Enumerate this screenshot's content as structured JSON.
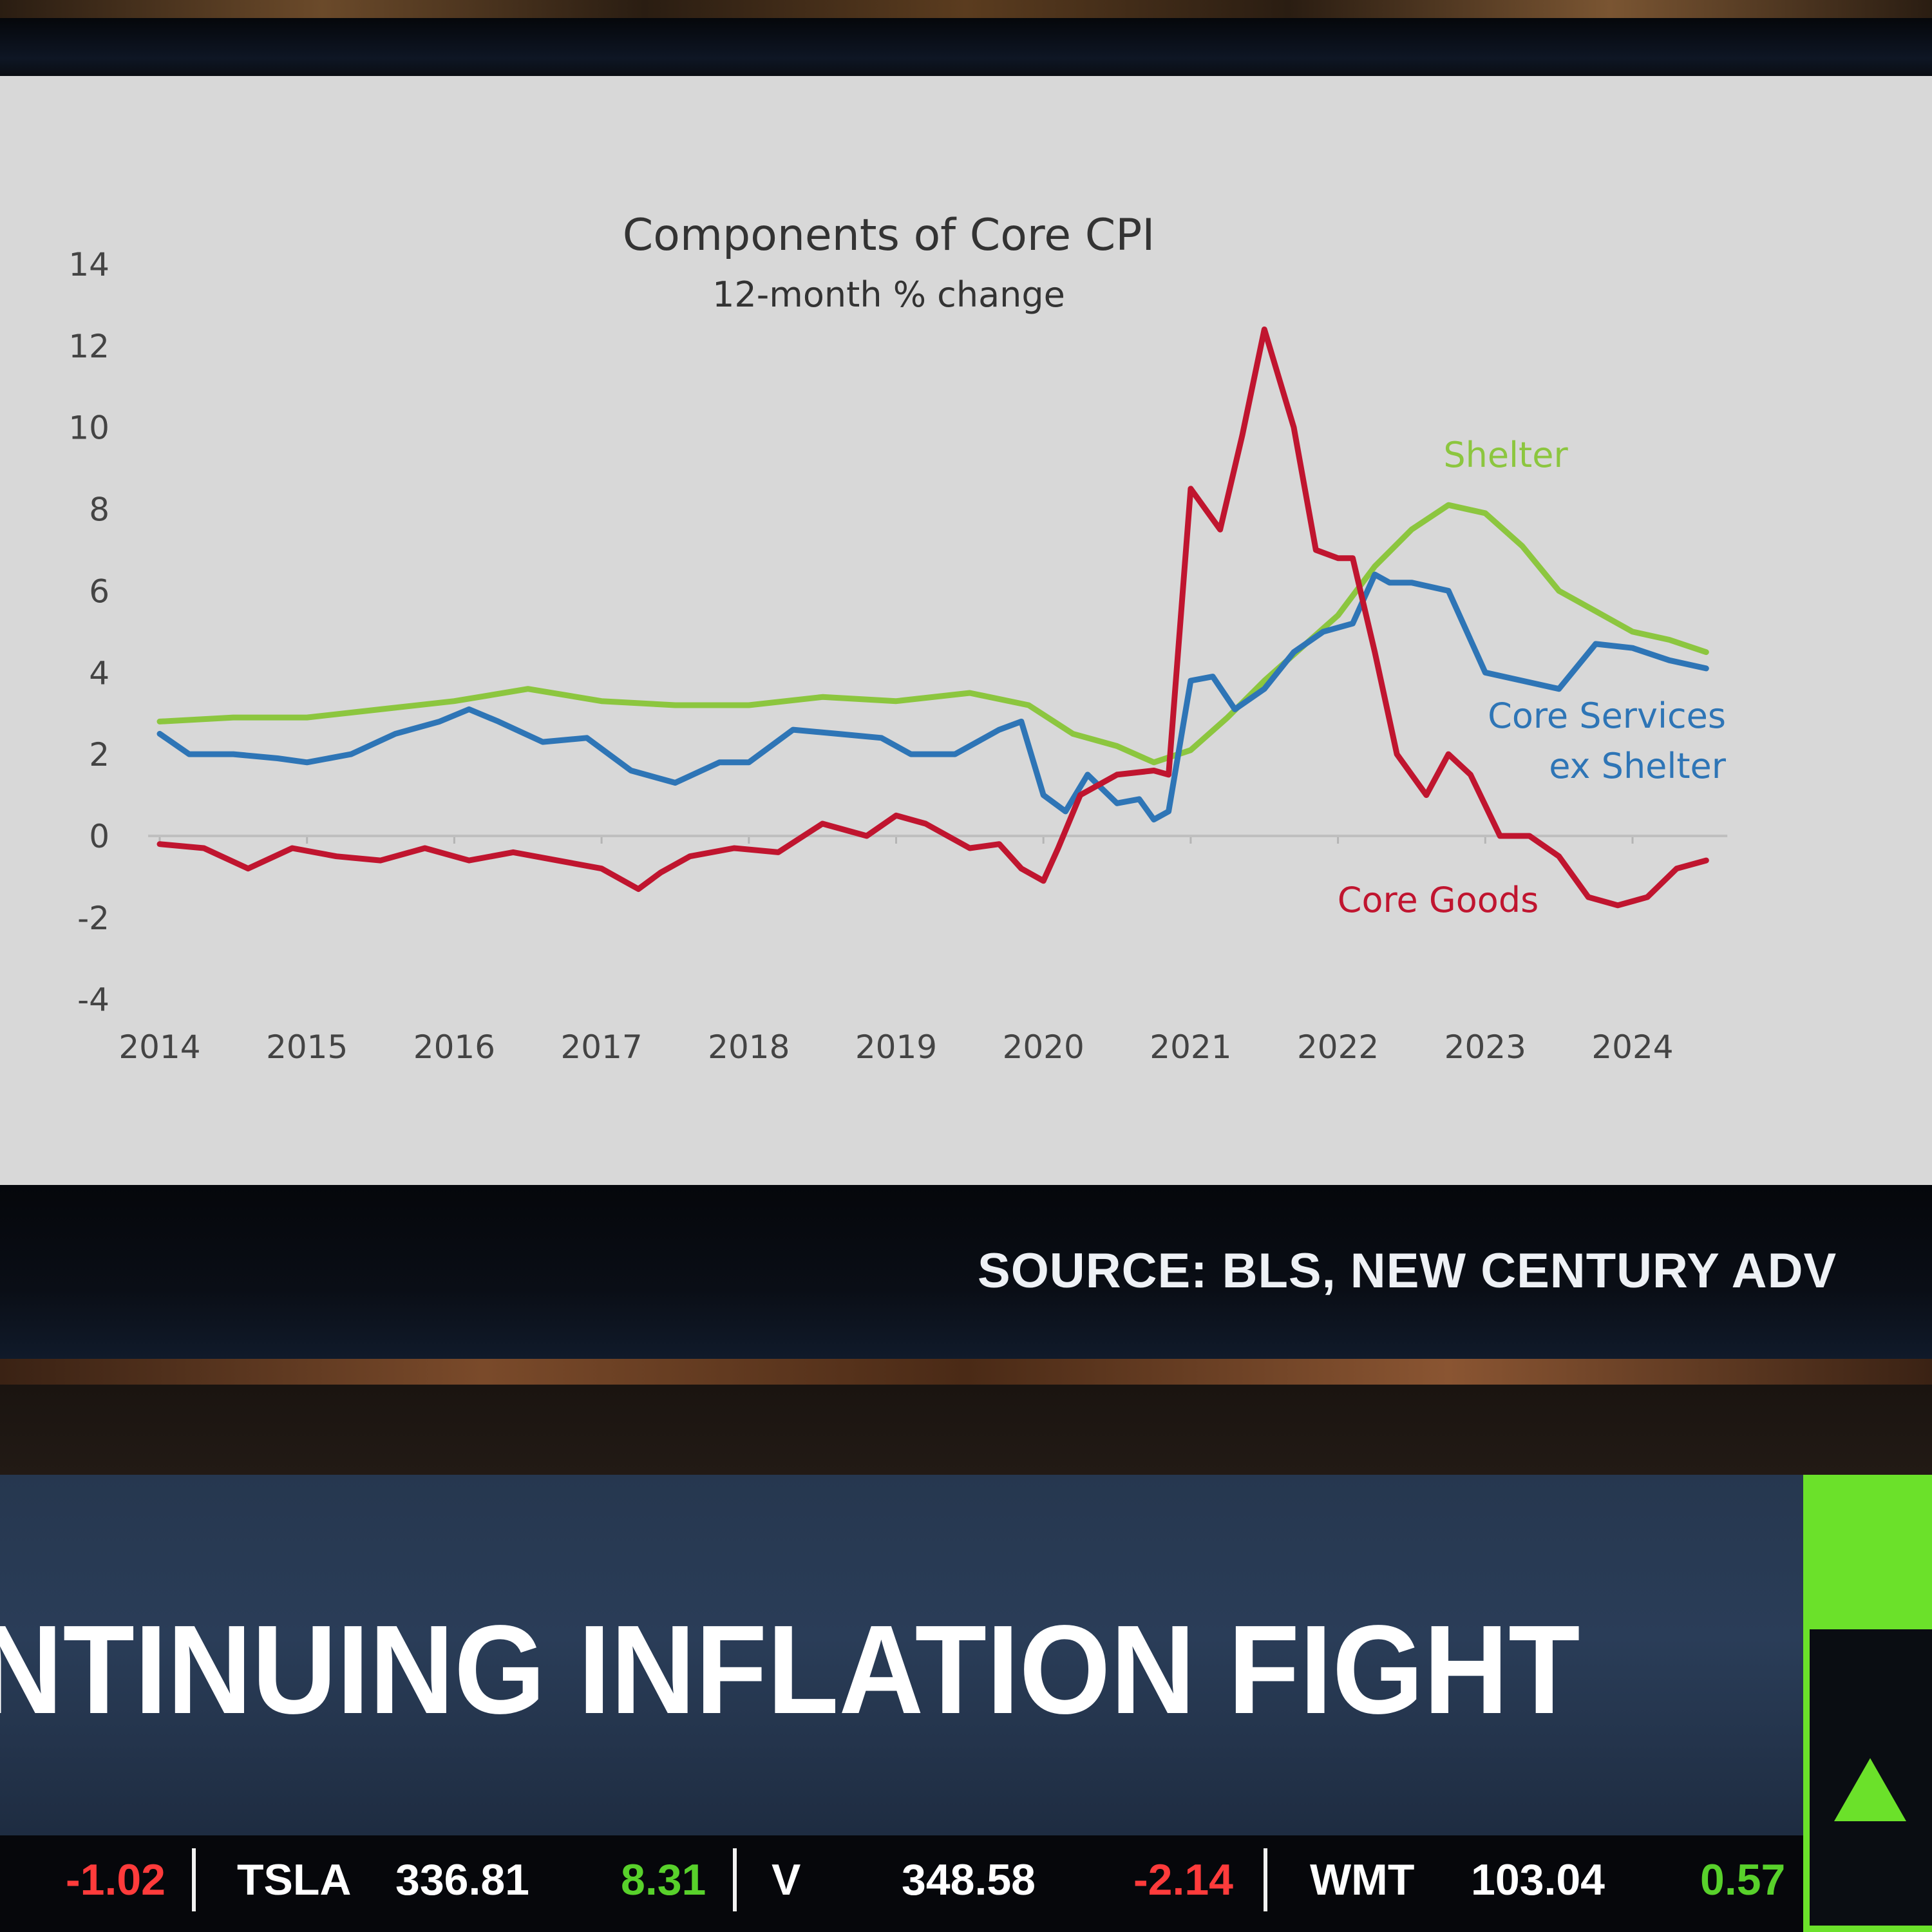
{
  "source_label": "SOURCE: BLS, NEW CENTURY ADV",
  "headline": "NTINUING INFLATION FIGHT",
  "ticker": [
    {
      "change": "-1.02",
      "dir": "down"
    },
    {
      "symbol": "TSLA",
      "price": "336.81",
      "change": "8.31",
      "dir": "up"
    },
    {
      "symbol": "V",
      "price": "348.58",
      "change": "-2.14",
      "dir": "down"
    },
    {
      "symbol": "WMT",
      "price": "103.04",
      "change": "0.57",
      "dir": "up"
    }
  ],
  "colors": {
    "up": "#58d12b",
    "down": "#ff3b3b",
    "shelter": "#8cc63f",
    "core_services": "#2e75b6",
    "core_goods": "#c0152f",
    "indicator": "#6be12a"
  },
  "indicator_icon": "up-triangle-icon",
  "chart_data": {
    "type": "line",
    "title": "Components of Core CPI",
    "subtitle": "12-month % change",
    "xlabel": "",
    "ylabel": "",
    "ylim": [
      -4,
      14
    ],
    "yticks": [
      "14",
      "12",
      "10",
      "8",
      "6",
      "4",
      "2",
      "0",
      "-2",
      "-4"
    ],
    "xlim": [
      2014,
      2024.6
    ],
    "xticks": [
      "2014",
      "2015",
      "2016",
      "2017",
      "2018",
      "2019",
      "2020",
      "2021",
      "2022",
      "2023",
      "2024"
    ],
    "grid": false,
    "legend": "inline labels",
    "series": [
      {
        "name": "Shelter",
        "label_lines": [
          "Shelter"
        ],
        "color": "#8cc63f",
        "x": [
          2014.0,
          2014.5,
          2015.0,
          2015.5,
          2016.0,
          2016.5,
          2017.0,
          2017.5,
          2018.0,
          2018.5,
          2019.0,
          2019.5,
          2019.9,
          2020.2,
          2020.5,
          2020.75,
          2021.0,
          2021.25,
          2021.5,
          2021.75,
          2022.0,
          2022.25,
          2022.5,
          2022.75,
          2023.0,
          2023.25,
          2023.5,
          2023.75,
          2024.0,
          2024.25,
          2024.5
        ],
        "y": [
          2.8,
          2.9,
          2.9,
          3.1,
          3.3,
          3.6,
          3.3,
          3.2,
          3.2,
          3.4,
          3.3,
          3.5,
          3.2,
          2.5,
          2.2,
          1.8,
          2.1,
          2.9,
          3.8,
          4.6,
          5.4,
          6.6,
          7.5,
          8.1,
          7.9,
          7.1,
          6.0,
          5.5,
          5.0,
          4.8,
          4.5
        ]
      },
      {
        "name": "Core Services ex Shelter",
        "label_lines": [
          "Core Services",
          "ex Shelter"
        ],
        "color": "#2e75b6",
        "x": [
          2014.0,
          2014.2,
          2014.5,
          2014.8,
          2015.0,
          2015.3,
          2015.6,
          2015.9,
          2016.1,
          2016.3,
          2016.6,
          2016.9,
          2017.2,
          2017.5,
          2017.8,
          2018.0,
          2018.3,
          2018.6,
          2018.9,
          2019.1,
          2019.4,
          2019.7,
          2019.85,
          2020.0,
          2020.15,
          2020.3,
          2020.5,
          2020.65,
          2020.75,
          2020.85,
          2021.0,
          2021.15,
          2021.3,
          2021.5,
          2021.7,
          2021.9,
          2022.1,
          2022.25,
          2022.35,
          2022.5,
          2022.75,
          2023.0,
          2023.25,
          2023.5,
          2023.75,
          2024.0,
          2024.25,
          2024.5
        ],
        "y": [
          2.5,
          2.0,
          2.0,
          1.9,
          1.8,
          2.0,
          2.5,
          2.8,
          3.1,
          2.8,
          2.3,
          2.4,
          1.6,
          1.3,
          1.8,
          1.8,
          2.6,
          2.5,
          2.4,
          2.0,
          2.0,
          2.6,
          2.8,
          1.0,
          0.6,
          1.5,
          0.8,
          0.9,
          0.4,
          0.6,
          3.8,
          3.9,
          3.1,
          3.6,
          4.5,
          5.0,
          5.2,
          6.4,
          6.2,
          6.2,
          6.0,
          4.0,
          3.8,
          3.6,
          4.7,
          4.6,
          4.3,
          4.1
        ]
      },
      {
        "name": "Core Goods",
        "label_lines": [
          "Core Goods"
        ],
        "color": "#c0152f",
        "x": [
          2014.0,
          2014.3,
          2014.6,
          2014.9,
          2015.2,
          2015.5,
          2015.8,
          2016.1,
          2016.4,
          2016.7,
          2017.0,
          2017.25,
          2017.4,
          2017.6,
          2017.9,
          2018.2,
          2018.5,
          2018.8,
          2019.0,
          2019.2,
          2019.5,
          2019.7,
          2019.85,
          2020.0,
          2020.1,
          2020.25,
          2020.5,
          2020.75,
          2020.85,
          2021.0,
          2021.2,
          2021.35,
          2021.5,
          2021.7,
          2021.85,
          2022.0,
          2022.1,
          2022.25,
          2022.4,
          2022.6,
          2022.75,
          2022.9,
          2023.1,
          2023.3,
          2023.5,
          2023.7,
          2023.9,
          2024.1,
          2024.3,
          2024.5
        ],
        "y": [
          -0.2,
          -0.3,
          -0.8,
          -0.3,
          -0.5,
          -0.6,
          -0.3,
          -0.6,
          -0.4,
          -0.6,
          -0.8,
          -1.3,
          -0.9,
          -0.5,
          -0.3,
          -0.4,
          0.3,
          0.0,
          0.5,
          0.3,
          -0.3,
          -0.2,
          -0.8,
          -1.1,
          -0.3,
          1.0,
          1.5,
          1.6,
          1.5,
          8.5,
          7.5,
          9.8,
          12.4,
          10.0,
          7.0,
          6.8,
          6.8,
          4.5,
          2.0,
          1.0,
          2.0,
          1.5,
          0.0,
          0.0,
          -0.5,
          -1.5,
          -1.7,
          -1.5,
          -0.8,
          -0.6
        ]
      }
    ]
  }
}
